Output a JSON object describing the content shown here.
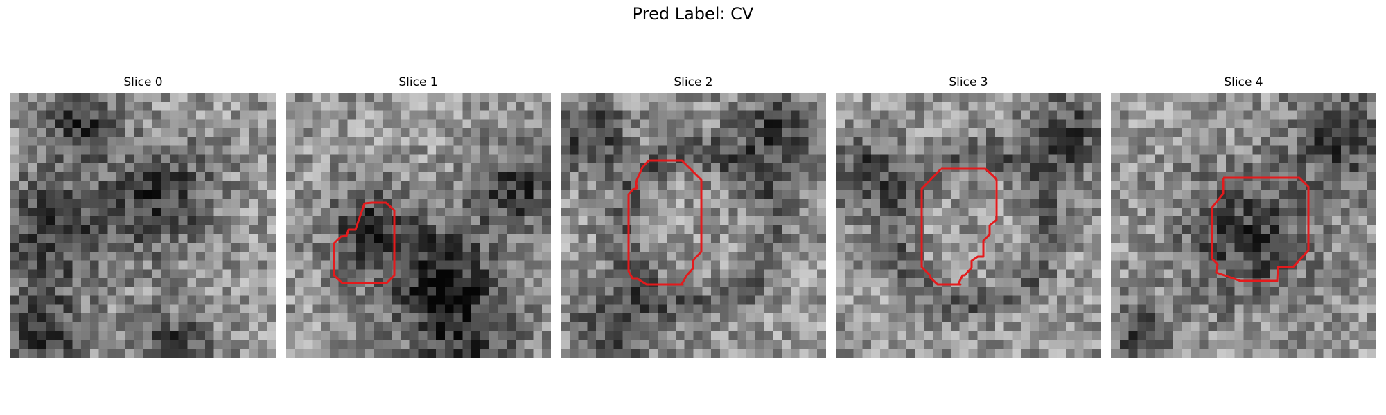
{
  "figure": {
    "title": "Pred Label: CV",
    "contour_color": "#e41a1c",
    "colormap": "grayscale"
  },
  "panels": [
    {
      "title": "Slice 0",
      "has_contour": false,
      "dark_blobs": [
        [
          1.5,
          5,
          2.2
        ],
        [
          5.5,
          3.8,
          2
        ],
        [
          1,
          9,
          1.6
        ],
        [
          6,
          9.5,
          1.4
        ],
        [
          2.5,
          1,
          1.3
        ]
      ],
      "ring": false
    },
    {
      "title": "Slice 1",
      "has_contour": true,
      "dark_blobs": [
        [
          3,
          5,
          1.6
        ],
        [
          5.5,
          6.5,
          2
        ],
        [
          8.5,
          3.5,
          1.6
        ],
        [
          6.5,
          9,
          2.2
        ]
      ],
      "ring": false
    },
    {
      "title": "Slice 2",
      "has_contour": true,
      "dark_blobs": [
        [
          2,
          8.5,
          1.6
        ],
        [
          8,
          1.5,
          1.8
        ],
        [
          1,
          1.5,
          1.4
        ]
      ],
      "ring": true
    },
    {
      "title": "Slice 3",
      "has_contour": true,
      "dark_blobs": [
        [
          8.5,
          1.5,
          1.6
        ],
        [
          1,
          3,
          1.4
        ]
      ],
      "ring": true
    },
    {
      "title": "Slice 4",
      "has_contour": true,
      "dark_blobs": [
        [
          8.5,
          1.5,
          1.8
        ],
        [
          5,
          5.3,
          2.4
        ],
        [
          1,
          9,
          1.2
        ]
      ],
      "ring": false
    }
  ]
}
